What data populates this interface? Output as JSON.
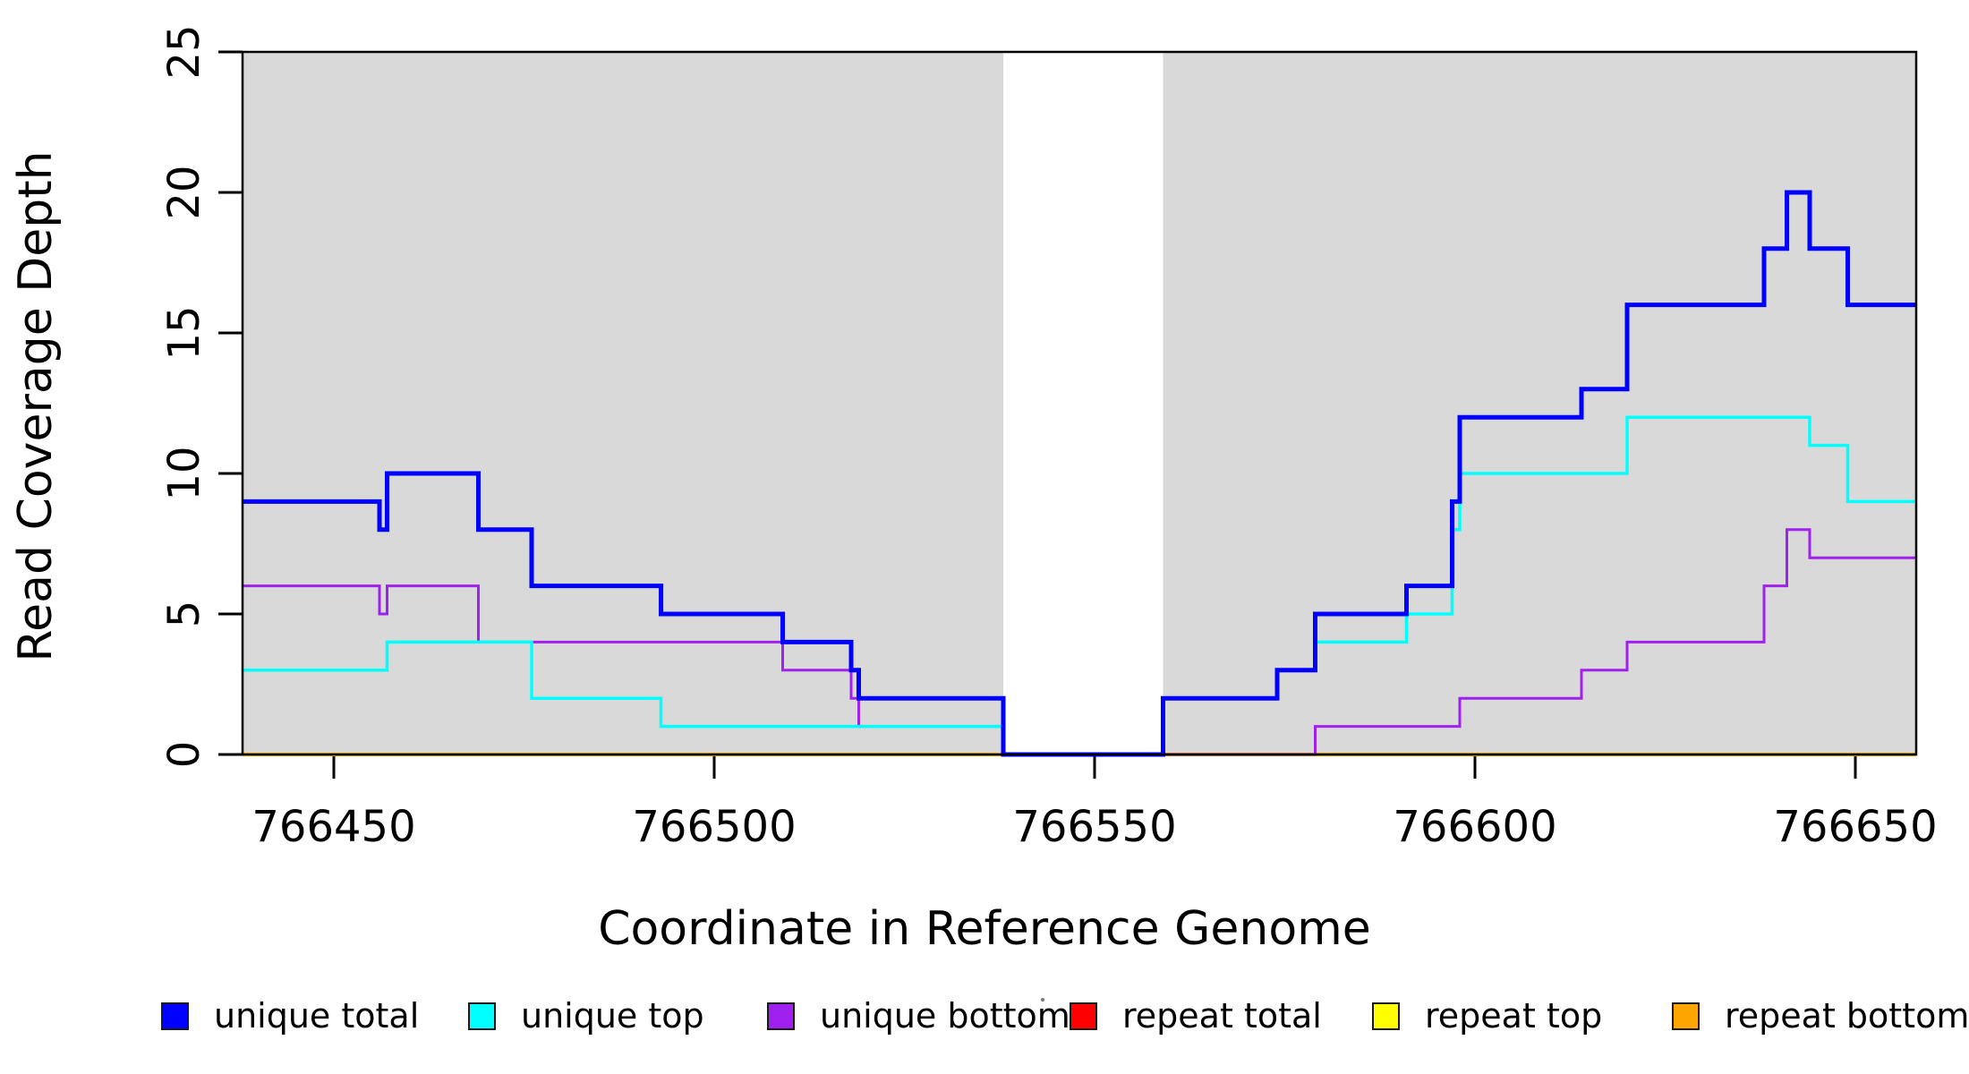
{
  "chart_data": {
    "type": "line",
    "subtype": "step",
    "title": "",
    "xlabel": "Coordinate in Reference Genome",
    "ylabel": "Read Coverage Depth",
    "xlim": [
      766438,
      766658
    ],
    "ylim": [
      0,
      25
    ],
    "x_ticks": [
      766450,
      766500,
      766550,
      766600,
      766650
    ],
    "y_ticks": [
      0,
      5,
      10,
      15,
      20,
      25
    ],
    "grid": "off",
    "background_color": "#ffffff",
    "plot_band_color": "#D9D9D9",
    "box_color": "#000000",
    "shaded_regions": [
      {
        "x0": 766438,
        "x1": 766538
      },
      {
        "x0": 766559,
        "x1": 766658
      }
    ],
    "gap_region": {
      "x0": 766538,
      "x1": 766559
    },
    "series": [
      {
        "name": "repeat total",
        "color": "#FF0000",
        "width": 3,
        "steps": [
          [
            766438,
            0
          ]
        ]
      },
      {
        "name": "repeat top",
        "color": "#FFFF00",
        "width": 3,
        "steps": [
          [
            766438,
            0
          ]
        ]
      },
      {
        "name": "repeat bottom",
        "color": "#FFA500",
        "width": 4,
        "steps": [
          [
            766438,
            0
          ]
        ]
      },
      {
        "name": "unique bottom",
        "color": "#A020F0",
        "width": 3,
        "steps": [
          [
            766438,
            6
          ],
          [
            766456,
            5
          ],
          [
            766457,
            6
          ],
          [
            766469,
            4
          ],
          [
            766509,
            3
          ],
          [
            766518,
            2
          ],
          [
            766519,
            1
          ],
          [
            766538,
            0
          ],
          [
            766579,
            1
          ],
          [
            766598,
            2
          ],
          [
            766614,
            3
          ],
          [
            766620,
            4
          ],
          [
            766638,
            6
          ],
          [
            766641,
            8
          ],
          [
            766644,
            7
          ]
        ]
      },
      {
        "name": "unique top",
        "color": "#00FFFF",
        "width": 3.5,
        "steps": [
          [
            766438,
            3
          ],
          [
            766457,
            4
          ],
          [
            766476,
            2
          ],
          [
            766493,
            1
          ],
          [
            766538,
            0
          ],
          [
            766559,
            2
          ],
          [
            766574,
            3
          ],
          [
            766579,
            4
          ],
          [
            766591,
            5
          ],
          [
            766597,
            8
          ],
          [
            766598,
            10
          ],
          [
            766620,
            12
          ],
          [
            766644,
            11
          ],
          [
            766649,
            9
          ]
        ]
      },
      {
        "name": "unique total",
        "color": "#0000FF",
        "width": 5,
        "steps": [
          [
            766438,
            9
          ],
          [
            766456,
            8
          ],
          [
            766457,
            10
          ],
          [
            766469,
            8
          ],
          [
            766476,
            6
          ],
          [
            766493,
            5
          ],
          [
            766509,
            4
          ],
          [
            766518,
            3
          ],
          [
            766519,
            2
          ],
          [
            766538,
            0
          ],
          [
            766559,
            2
          ],
          [
            766574,
            3
          ],
          [
            766579,
            5
          ],
          [
            766591,
            6
          ],
          [
            766597,
            9
          ],
          [
            766598,
            12
          ],
          [
            766614,
            13
          ],
          [
            766620,
            16
          ],
          [
            766638,
            18
          ],
          [
            766641,
            20
          ],
          [
            766644,
            18
          ],
          [
            766649,
            16
          ]
        ]
      }
    ],
    "legend": {
      "position": "bottom",
      "items": [
        {
          "label": "unique total",
          "color": "#0000FF"
        },
        {
          "label": "unique top",
          "color": "#00FFFF"
        },
        {
          "label": "unique bottom",
          "color": "#A020F0"
        },
        {
          "label": "repeat total",
          "color": "#FF0000"
        },
        {
          "label": "repeat top",
          "color": "#FFFF00"
        },
        {
          "label": "repeat bottom",
          "color": "#FFA500"
        }
      ]
    }
  }
}
